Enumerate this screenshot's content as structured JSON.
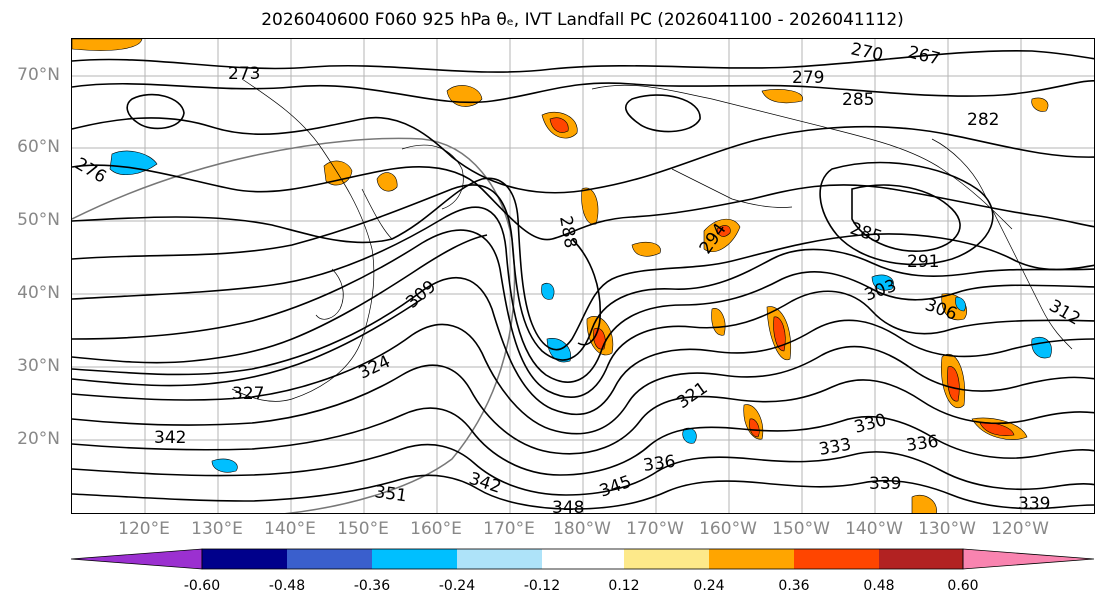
{
  "title": "2026040600 F060 925 hPa θₑ, IVT Landfall PC (2026041100 - 2026041112)",
  "latitude_labels": [
    "70°N",
    "60°N",
    "50°N",
    "40°N",
    "30°N",
    "20°N"
  ],
  "longitude_labels": [
    "120°E",
    "130°E",
    "140°E",
    "150°E",
    "160°E",
    "170°E",
    "180°W",
    "170°W",
    "160°W",
    "150°W",
    "140°W",
    "130°W",
    "120°W"
  ],
  "contour_labels": [
    "273",
    "276",
    "270",
    "267",
    "279",
    "285",
    "282",
    "288",
    "285",
    "291",
    "294",
    "303",
    "306",
    "309",
    "312",
    "321",
    "324",
    "327",
    "330",
    "333",
    "336",
    "339",
    "342",
    "345",
    "348",
    "351",
    "336",
    "342",
    "339"
  ],
  "colorbar": {
    "tick_labels": [
      "-0.60",
      "-0.48",
      "-0.36",
      "-0.24",
      "-0.12",
      "0.12",
      "0.24",
      "0.36",
      "0.48",
      "0.60"
    ],
    "colors": [
      "#9b30d0",
      "#00008b",
      "#3a5fcd",
      "#00bfff",
      "#aee3f9",
      "#ffffff",
      "#fde98a",
      "#ffa500",
      "#ff4500",
      "#b22222",
      "#f984b0"
    ],
    "extend": "both"
  }
}
